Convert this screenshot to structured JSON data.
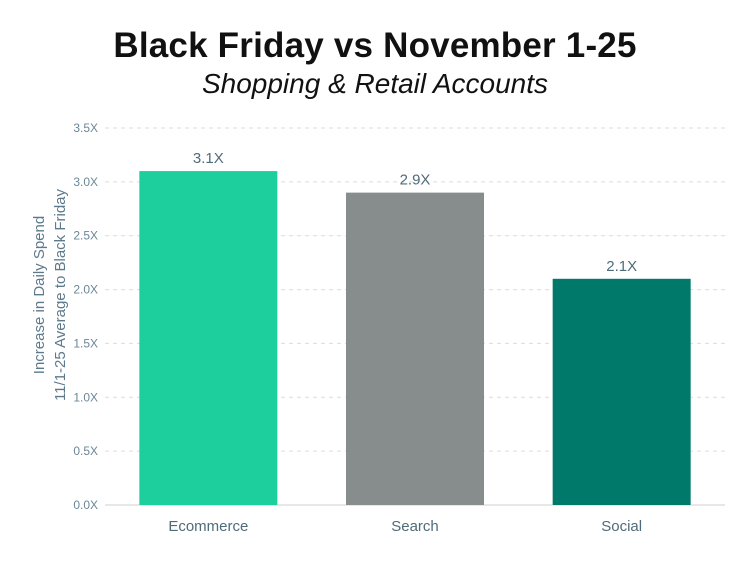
{
  "chart_data": {
    "type": "bar",
    "title": "Black Friday vs November 1-25",
    "subtitle": "Shopping & Retail Accounts",
    "ylabel_lines": [
      "Increase in Daily Spend",
      "11/1-25 Average to Black Friday"
    ],
    "xlabel": "",
    "categories": [
      "Ecommerce",
      "Search",
      "Social"
    ],
    "values": [
      3.1,
      2.9,
      2.1
    ],
    "data_labels": [
      "3.1X",
      "2.9X",
      "2.1X"
    ],
    "bar_colors": [
      "#1ecf9e",
      "#868d8c",
      "#00796a"
    ],
    "ylim": [
      0,
      3.5
    ],
    "yticks": [
      0,
      0.5,
      1.0,
      1.5,
      2.0,
      2.5,
      3.0,
      3.5
    ],
    "ytick_labels": [
      "0.0X",
      "0.5X",
      "1.0X",
      "1.5X",
      "2.0X",
      "2.5X",
      "3.0X",
      "3.5X"
    ],
    "grid": true,
    "legend": "none"
  }
}
